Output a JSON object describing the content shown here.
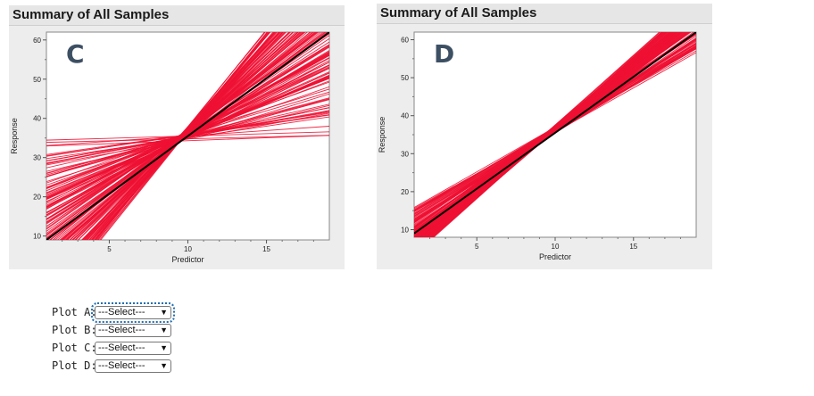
{
  "chart_data": [
    {
      "type": "line",
      "label": "C",
      "title": "Summary of All Samples",
      "xlabel": "Predictor",
      "ylabel": "Response",
      "xlim": [
        1,
        19
      ],
      "ylim": [
        9,
        62
      ],
      "xticks": [
        5,
        10,
        15
      ],
      "yticks": [
        10,
        20,
        30,
        40,
        50,
        60
      ],
      "pivot": [
        9.5,
        35
      ],
      "reference_line": {
        "x": [
          1,
          19
        ],
        "y": [
          9,
          62
        ],
        "color": "#000000"
      },
      "sample_lines": {
        "count": 150,
        "slope_min": 0.0,
        "slope_max": 5.0,
        "color": "#ee1133"
      }
    },
    {
      "type": "line",
      "label": "D",
      "title": "Summary of All Samples",
      "xlabel": "Predictor",
      "ylabel": "Response",
      "xlim": [
        1,
        19
      ],
      "ylim": [
        8,
        62
      ],
      "xticks": [
        5,
        10,
        15
      ],
      "yticks": [
        10,
        20,
        30,
        40,
        50,
        60
      ],
      "pivot": [
        9.5,
        35
      ],
      "reference_line": {
        "x": [
          1,
          19
        ],
        "y": [
          9,
          62
        ],
        "color": "#000000"
      },
      "sample_lines": {
        "count": 150,
        "slope_min": 2.3,
        "slope_max": 3.7,
        "color": "#ee1133"
      }
    }
  ],
  "form": {
    "rows": [
      {
        "label": "Plot A:",
        "value": "---Select---"
      },
      {
        "label": "Plot B:",
        "value": "---Select---"
      },
      {
        "label": "Plot C:",
        "value": "---Select---"
      },
      {
        "label": "Plot D:",
        "value": "---Select---"
      }
    ]
  }
}
